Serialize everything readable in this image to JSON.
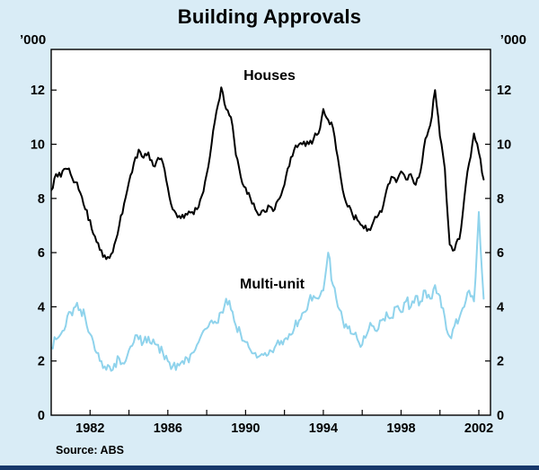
{
  "page": {
    "title": "Building Approvals",
    "source": "Source: ABS"
  },
  "chart_data": {
    "type": "line",
    "title": "Building Approvals",
    "unit_label_left": "’000",
    "unit_label_right": "’000",
    "grid": false,
    "legend_position": "inline-labels",
    "x_start": 1980.0,
    "x_step": 0.25,
    "xlim": [
      1980.0,
      2002.6
    ],
    "ylim": [
      0,
      13.5
    ],
    "yticks": [
      0,
      2,
      4,
      6,
      8,
      10,
      12
    ],
    "xtick_marks": [
      1980,
      1982,
      1984,
      1986,
      1988,
      1990,
      1992,
      1994,
      1996,
      1998,
      2000,
      2002
    ],
    "xtick_labels": [
      "1982",
      "1986",
      "1990",
      "1994",
      "1998",
      "2002"
    ],
    "xtick_label_years": [
      1982,
      1986,
      1990,
      1994,
      1998,
      2002
    ],
    "source": "Source: ABS",
    "colors": {
      "background": "#d9ecf6",
      "plot_background": "#ffffff",
      "frame": "#000000",
      "tick": "#000000",
      "text": "#000000",
      "footer_bar": "#17386b"
    },
    "render_noise": [
      0.22,
      0.14
    ],
    "series": [
      {
        "name": "Multi-unit",
        "color": "#8fd3ec",
        "width": 2,
        "values": [
          2.5,
          2.8,
          3.0,
          3.3,
          3.8,
          4.0,
          3.9,
          3.6,
          3.0,
          2.4,
          2.0,
          1.8,
          1.8,
          1.9,
          2.1,
          1.9,
          2.4,
          2.7,
          2.8,
          2.7,
          2.9,
          2.8,
          2.6,
          2.3,
          2.0,
          1.8,
          1.9,
          2.0,
          2.1,
          2.3,
          2.6,
          3.0,
          3.2,
          3.5,
          3.4,
          3.8,
          4.3,
          3.9,
          3.3,
          3.0,
          2.7,
          2.4,
          2.3,
          2.2,
          2.3,
          2.4,
          2.5,
          2.6,
          2.8,
          3.0,
          3.2,
          3.5,
          3.8,
          4.2,
          4.4,
          4.3,
          4.6,
          6.0,
          4.8,
          4.0,
          3.5,
          3.2,
          3.0,
          2.8,
          2.6,
          3.0,
          3.3,
          3.1,
          3.5,
          3.8,
          3.6,
          4.0,
          3.8,
          4.2,
          4.0,
          4.4,
          4.2,
          4.6,
          4.3,
          4.8,
          4.4,
          3.6,
          2.9,
          3.3,
          3.6,
          4.0,
          4.6,
          4.2,
          7.5,
          4.3
        ]
      },
      {
        "name": "Houses",
        "color": "#000000",
        "width": 2,
        "values": [
          8.3,
          8.9,
          8.8,
          9.1,
          8.9,
          8.6,
          8.2,
          7.6,
          7.2,
          6.6,
          6.1,
          5.9,
          5.8,
          6.3,
          7.0,
          7.8,
          8.6,
          9.3,
          9.8,
          9.5,
          9.7,
          9.2,
          9.5,
          9.3,
          8.4,
          7.6,
          7.3,
          7.4,
          7.4,
          7.5,
          7.6,
          8.1,
          8.9,
          10.0,
          11.2,
          12.1,
          11.3,
          11.0,
          9.6,
          8.8,
          8.4,
          8.0,
          7.6,
          7.4,
          7.5,
          7.7,
          7.6,
          8.0,
          8.5,
          9.2,
          9.8,
          10.0,
          10.1,
          10.0,
          10.2,
          10.4,
          11.3,
          10.9,
          10.6,
          9.5,
          8.3,
          7.7,
          7.4,
          7.2,
          7.0,
          6.8,
          7.0,
          7.3,
          7.5,
          8.3,
          8.8,
          8.6,
          9.0,
          8.7,
          8.9,
          8.5,
          9.0,
          10.2,
          10.7,
          12.0,
          10.3,
          9.1,
          6.3,
          6.1,
          6.5,
          8.0,
          9.3,
          10.4,
          9.7,
          8.7
        ]
      }
    ],
    "series_label_houses": "Houses",
    "series_label_multi": "Multi-unit"
  }
}
